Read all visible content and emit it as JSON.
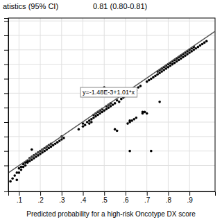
{
  "chart_data": {
    "type": "scatter",
    "title": "atistics (95% CI)",
    "subtitle": "0.81 (0.80-0.81)",
    "x_label": "Predicted probability for a high-risk Oncotype DX score",
    "annotations": [
      "y=-1.48E-3+1.01*x"
    ],
    "xlim": [
      0.05,
      1.02
    ],
    "ylim": [
      -0.08,
      1.12
    ],
    "xticks": [
      {
        "value": 0.1,
        "label": ".1"
      },
      {
        "value": 0.2,
        "label": ".2"
      },
      {
        "value": 0.3,
        "label": ".3"
      },
      {
        "value": 0.4,
        "label": ".4"
      },
      {
        "value": 0.5,
        "label": ".5"
      },
      {
        "value": 0.6,
        "label": ".6"
      },
      {
        "value": 0.7,
        "label": ".7"
      },
      {
        "value": 0.8,
        "label": ".8"
      },
      {
        "value": 0.9,
        "label": ".9"
      }
    ],
    "yticks": [
      0.1,
      0.2,
      0.3,
      0.4,
      0.5,
      0.6,
      0.7,
      0.8,
      0.9,
      1.0,
      1.1
    ],
    "tick_labels": "x",
    "grid": true,
    "series": [
      {
        "type": "scatter",
        "color": "#000000",
        "x": [
          0.06,
          0.07,
          0.08,
          0.09,
          0.09,
          0.1,
          0.1,
          0.11,
          0.11,
          0.12,
          0.12,
          0.13,
          0.13,
          0.14,
          0.14,
          0.15,
          0.15,
          0.16,
          0.16,
          0.17,
          0.17,
          0.18,
          0.18,
          0.19,
          0.19,
          0.2,
          0.2,
          0.21,
          0.21,
          0.22,
          0.22,
          0.23,
          0.23,
          0.24,
          0.24,
          0.25,
          0.25,
          0.26,
          0.27,
          0.28,
          0.29,
          0.3,
          0.3,
          0.31,
          0.16,
          0.38,
          0.4,
          0.4,
          0.41,
          0.42,
          0.43,
          0.43,
          0.44,
          0.44,
          0.45,
          0.45,
          0.46,
          0.46,
          0.47,
          0.47,
          0.48,
          0.48,
          0.49,
          0.49,
          0.5,
          0.5,
          0.51,
          0.51,
          0.52,
          0.52,
          0.53,
          0.53,
          0.54,
          0.55,
          0.55,
          0.56,
          0.56,
          0.57,
          0.58,
          0.59,
          0.6,
          0.6,
          0.61,
          0.62,
          0.62,
          0.63,
          0.63,
          0.64,
          0.65,
          0.65,
          0.66,
          0.67,
          0.68,
          0.68,
          0.69,
          0.7,
          0.7,
          0.71,
          0.72,
          0.73,
          0.74,
          0.75,
          0.75,
          0.76,
          0.76,
          0.77,
          0.77,
          0.78,
          0.78,
          0.79,
          0.79,
          0.8,
          0.8,
          0.81,
          0.81,
          0.82,
          0.82,
          0.83,
          0.83,
          0.84,
          0.84,
          0.85,
          0.85,
          0.86,
          0.86,
          0.87,
          0.87,
          0.88,
          0.88,
          0.89,
          0.89,
          0.9,
          0.9,
          0.91,
          0.91,
          0.92,
          0.92,
          0.93,
          0.94,
          0.95,
          0.96,
          0.97,
          0.98,
          0.62,
          0.72,
          0.76
        ],
        "values": [
          -0.01,
          0.01,
          0.03,
          0,
          0.05,
          0.05,
          0.08,
          0.07,
          0.09,
          0.09,
          0.11,
          0.1,
          0.12,
          0.12,
          0.13,
          0.13,
          0.15,
          0.14,
          0.16,
          0.15,
          0.17,
          0.16,
          0.18,
          0.17,
          0.19,
          0.18,
          0.2,
          0.19,
          0.21,
          0.2,
          0.22,
          0.21,
          0.23,
          0.22,
          0.24,
          0.23,
          0.25,
          0.24,
          0.25,
          0.26,
          0.27,
          0.28,
          0.3,
          0.29,
          0.21,
          0.35,
          0.37,
          0.39,
          0.38,
          0.4,
          0.39,
          0.41,
          0.4,
          0.42,
          0.43,
          0.45,
          0.44,
          0.46,
          0.45,
          0.47,
          0.46,
          0.48,
          0.47,
          0.49,
          0.64,
          0.48,
          0.49,
          0.51,
          0.5,
          0.52,
          0.51,
          0.53,
          0.52,
          0.53,
          0.35,
          0.34,
          0.55,
          0.54,
          0.56,
          0.57,
          0.58,
          0.6,
          0.39,
          0.4,
          0.41,
          0.41,
          0.63,
          0.42,
          0.43,
          0.62,
          0.64,
          0.65,
          0.46,
          0.47,
          0.47,
          0.46,
          0.68,
          0.69,
          0.7,
          0.71,
          0.72,
          0.73,
          0.75,
          0.74,
          0.76,
          0.75,
          0.77,
          0.76,
          0.78,
          0.77,
          0.79,
          0.78,
          0.8,
          0.79,
          0.81,
          0.8,
          0.82,
          0.81,
          0.83,
          0.82,
          0.84,
          0.83,
          0.85,
          0.84,
          0.86,
          0.85,
          0.87,
          0.86,
          0.88,
          0.87,
          0.89,
          0.88,
          0.9,
          0.89,
          0.91,
          0.9,
          0.92,
          0.91,
          0.92,
          0.93,
          0.94,
          0.95,
          0.96,
          0.2,
          0.2,
          0.54
        ]
      },
      {
        "type": "line",
        "color": "#555555",
        "x": [
          0.05,
          1.02
        ],
        "values": [
          0.04902,
          1.02872
        ]
      }
    ]
  }
}
